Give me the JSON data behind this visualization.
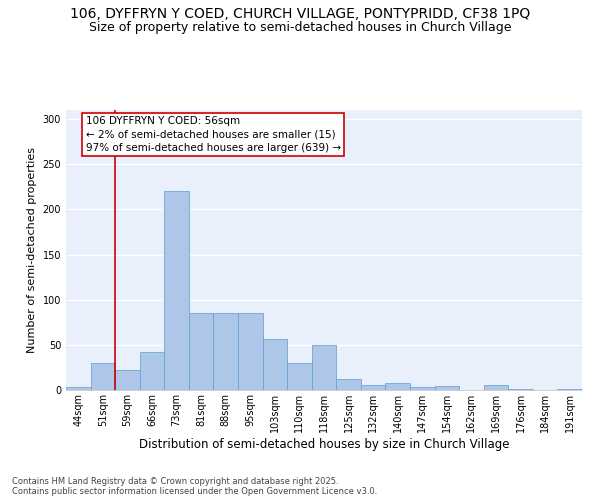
{
  "title": "106, DYFFRYN Y COED, CHURCH VILLAGE, PONTYPRIDD, CF38 1PQ",
  "subtitle": "Size of property relative to semi-detached houses in Church Village",
  "xlabel": "Distribution of semi-detached houses by size in Church Village",
  "ylabel": "Number of semi-detached properties",
  "categories": [
    "44sqm",
    "51sqm",
    "59sqm",
    "66sqm",
    "73sqm",
    "81sqm",
    "88sqm",
    "95sqm",
    "103sqm",
    "110sqm",
    "118sqm",
    "125sqm",
    "132sqm",
    "140sqm",
    "147sqm",
    "154sqm",
    "162sqm",
    "169sqm",
    "176sqm",
    "184sqm",
    "191sqm"
  ],
  "values": [
    3,
    30,
    22,
    42,
    220,
    85,
    85,
    85,
    57,
    30,
    50,
    12,
    6,
    8,
    3,
    4,
    0,
    6,
    1,
    0,
    1
  ],
  "bar_color": "#aec6e8",
  "bar_edge_color": "#5a9fd4",
  "vline_color": "#cc0000",
  "vline_index": 1.5,
  "annotation_line1": "106 DYFFRYN Y COED: 56sqm",
  "annotation_line2": "← 2% of semi-detached houses are smaller (15)",
  "annotation_line3": "97% of semi-detached houses are larger (639) →",
  "annotation_box_edgecolor": "#cc0000",
  "ylim": [
    0,
    310
  ],
  "yticks": [
    0,
    50,
    100,
    150,
    200,
    250,
    300
  ],
  "footer": "Contains HM Land Registry data © Crown copyright and database right 2025.\nContains public sector information licensed under the Open Government Licence v3.0.",
  "bg_color": "#eaf0fb",
  "grid_color": "#ffffff",
  "title_fontsize": 10,
  "subtitle_fontsize": 9,
  "xlabel_fontsize": 8.5,
  "ylabel_fontsize": 8,
  "tick_fontsize": 7,
  "annotation_fontsize": 7.5,
  "footer_fontsize": 6
}
